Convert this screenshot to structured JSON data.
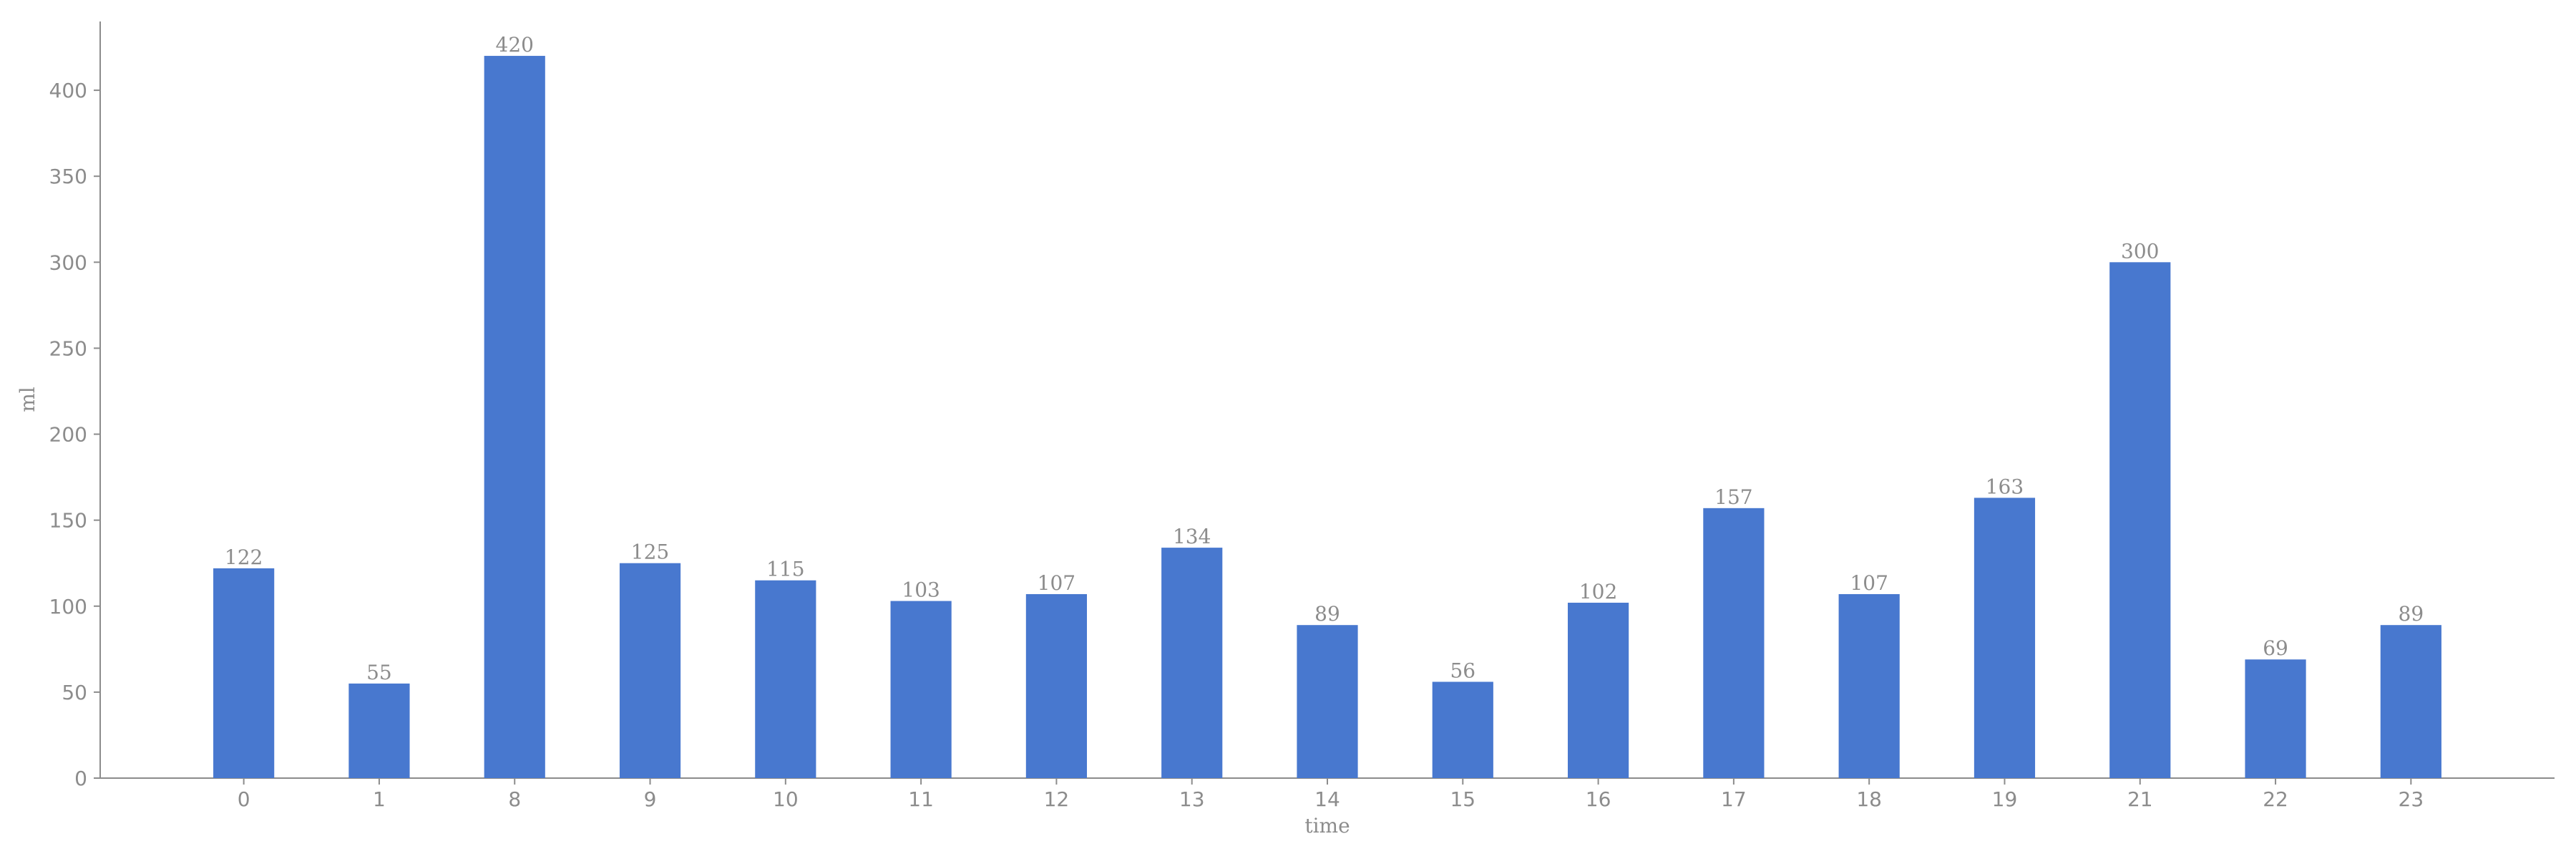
{
  "chart_data": {
    "type": "bar",
    "x_label": "time",
    "y_label": "ml",
    "categories": [
      "0",
      "1",
      "8",
      "9",
      "10",
      "11",
      "12",
      "13",
      "14",
      "15",
      "16",
      "17",
      "18",
      "19",
      "21",
      "22",
      "23"
    ],
    "values": [
      122,
      55,
      420,
      125,
      115,
      103,
      107,
      134,
      89,
      56,
      102,
      157,
      107,
      163,
      300,
      69,
      89
    ],
    "color": "#4878cf",
    "ylim": [
      0,
      440
    ],
    "yticks": [
      0,
      50,
      100,
      150,
      200,
      250,
      300,
      350,
      400
    ],
    "grid": false
  }
}
